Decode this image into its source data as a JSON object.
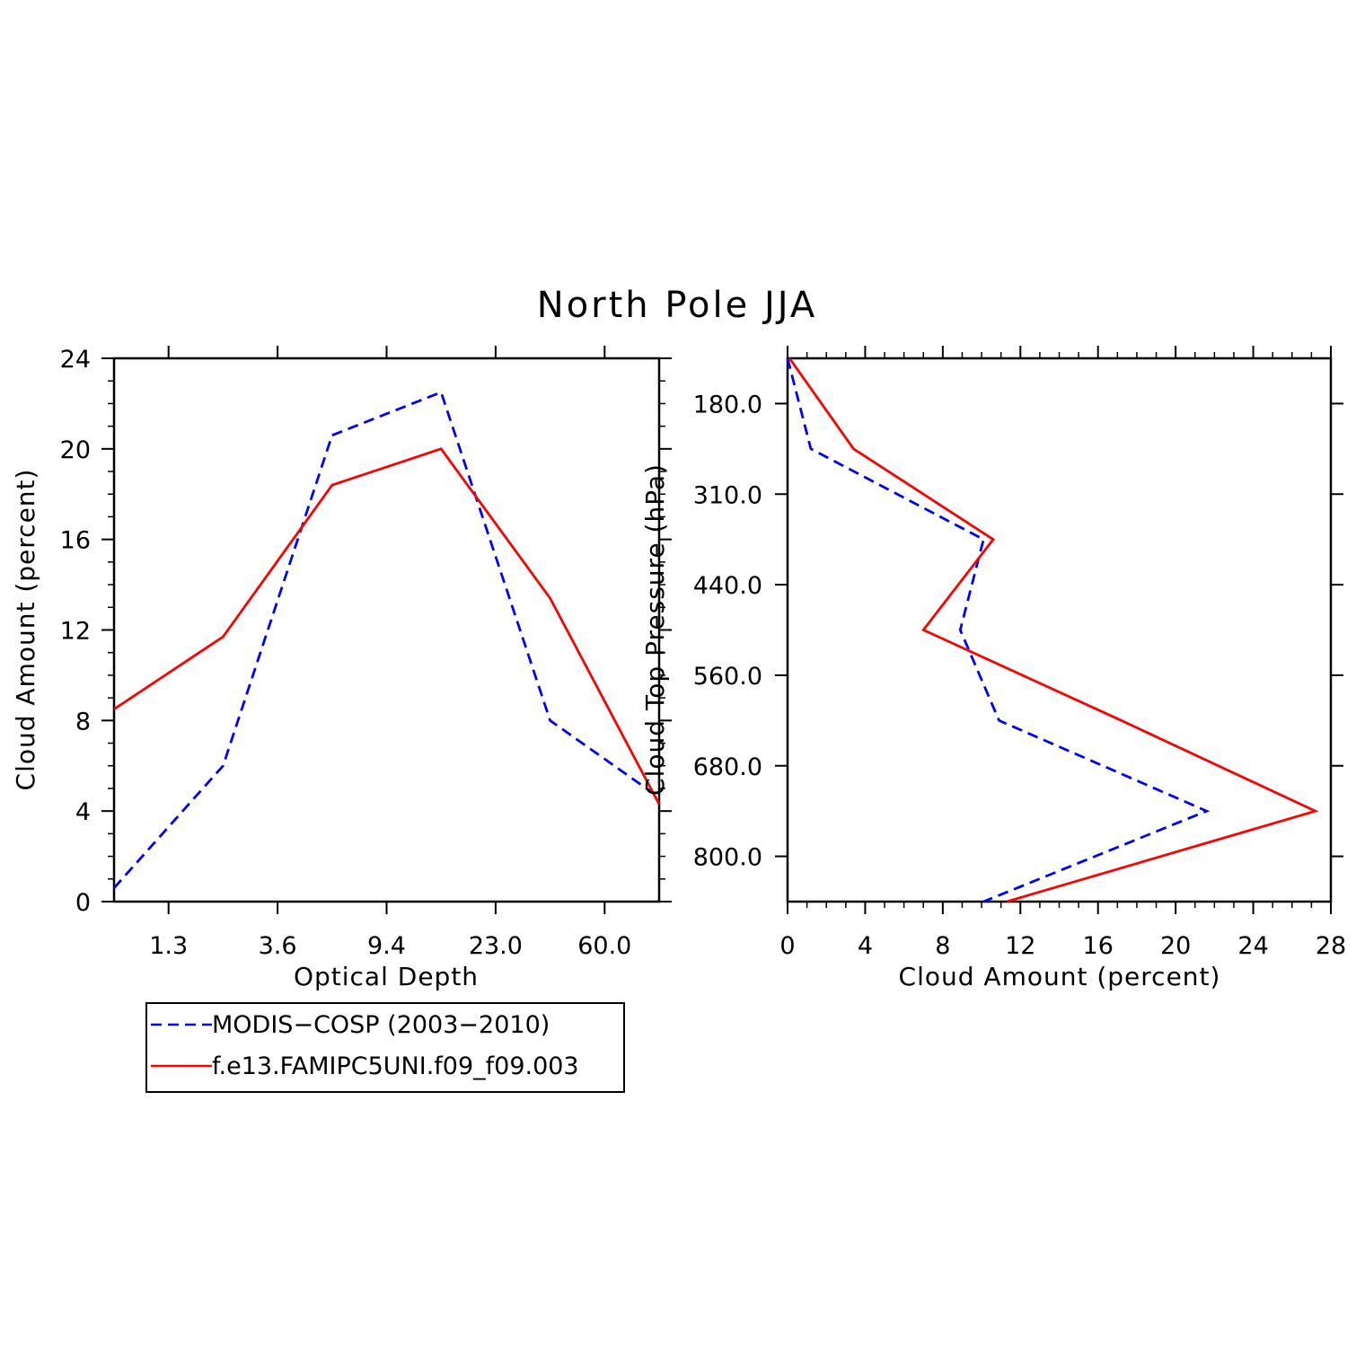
{
  "title": "North Pole JJA",
  "colors": {
    "observed": "#0000ff",
    "model": "#ff0000",
    "axis": "#000000"
  },
  "chart_data": [
    {
      "type": "line",
      "xlabel": "Optical Depth",
      "ylabel": "Cloud Amount (percent)",
      "x_tick_labels": [
        "1.3",
        "3.6",
        "9.4",
        "23.0",
        "60.0"
      ],
      "y_ticks": [
        0,
        4,
        8,
        12,
        16,
        20,
        24
      ],
      "ylim": [
        0,
        24
      ],
      "x_positions": [
        0,
        1,
        2,
        3,
        4,
        5
      ],
      "xlim": [
        0,
        5
      ],
      "grid": false,
      "series": [
        {
          "name": "MODIS−COSP (2003−2010)",
          "style": "dashed",
          "color": "#0000ff",
          "values": [
            0.6,
            6.0,
            20.6,
            22.5,
            8.0,
            4.6
          ]
        },
        {
          "name": "f.e13.FAMIPC5UNI.f09_f09.003",
          "style": "solid",
          "color": "#ff0000",
          "values": [
            8.5,
            11.7,
            18.4,
            20.0,
            13.4,
            4.3
          ]
        }
      ]
    },
    {
      "type": "line",
      "orientation": "vertical-profile",
      "xlabel": "Cloud Amount (percent)",
      "ylabel": "Cloud Top Pressure (hPa)",
      "x_ticks": [
        0,
        4,
        8,
        12,
        16,
        20,
        24,
        28
      ],
      "xlim": [
        0,
        28
      ],
      "y_tick_labels": [
        "180.0",
        "310.0",
        "440.0",
        "560.0",
        "680.0",
        "800.0"
      ],
      "y_positions": [
        0,
        1,
        2,
        3,
        4,
        5,
        6
      ],
      "y_reversed": true,
      "grid": false,
      "series": [
        {
          "name": "MODIS−COSP (2003−2010)",
          "style": "dashed",
          "color": "#0000ff",
          "values": [
            0.0,
            1.2,
            10.1,
            8.9,
            10.9,
            21.6,
            10.1
          ]
        },
        {
          "name": "f.e13.FAMIPC5UNI.f09_f09.003",
          "style": "solid",
          "color": "#ff0000",
          "values": [
            0.1,
            3.4,
            10.6,
            7.0,
            17.2,
            27.2,
            11.3
          ]
        }
      ]
    }
  ],
  "legend": {
    "placement": "bottom-left",
    "entries": [
      {
        "label": "MODIS−COSP (2003−2010)",
        "style": "dashed",
        "color": "#0000ff"
      },
      {
        "label": "f.e13.FAMIPC5UNI.f09_f09.003",
        "style": "solid",
        "color": "#ff0000"
      }
    ]
  }
}
